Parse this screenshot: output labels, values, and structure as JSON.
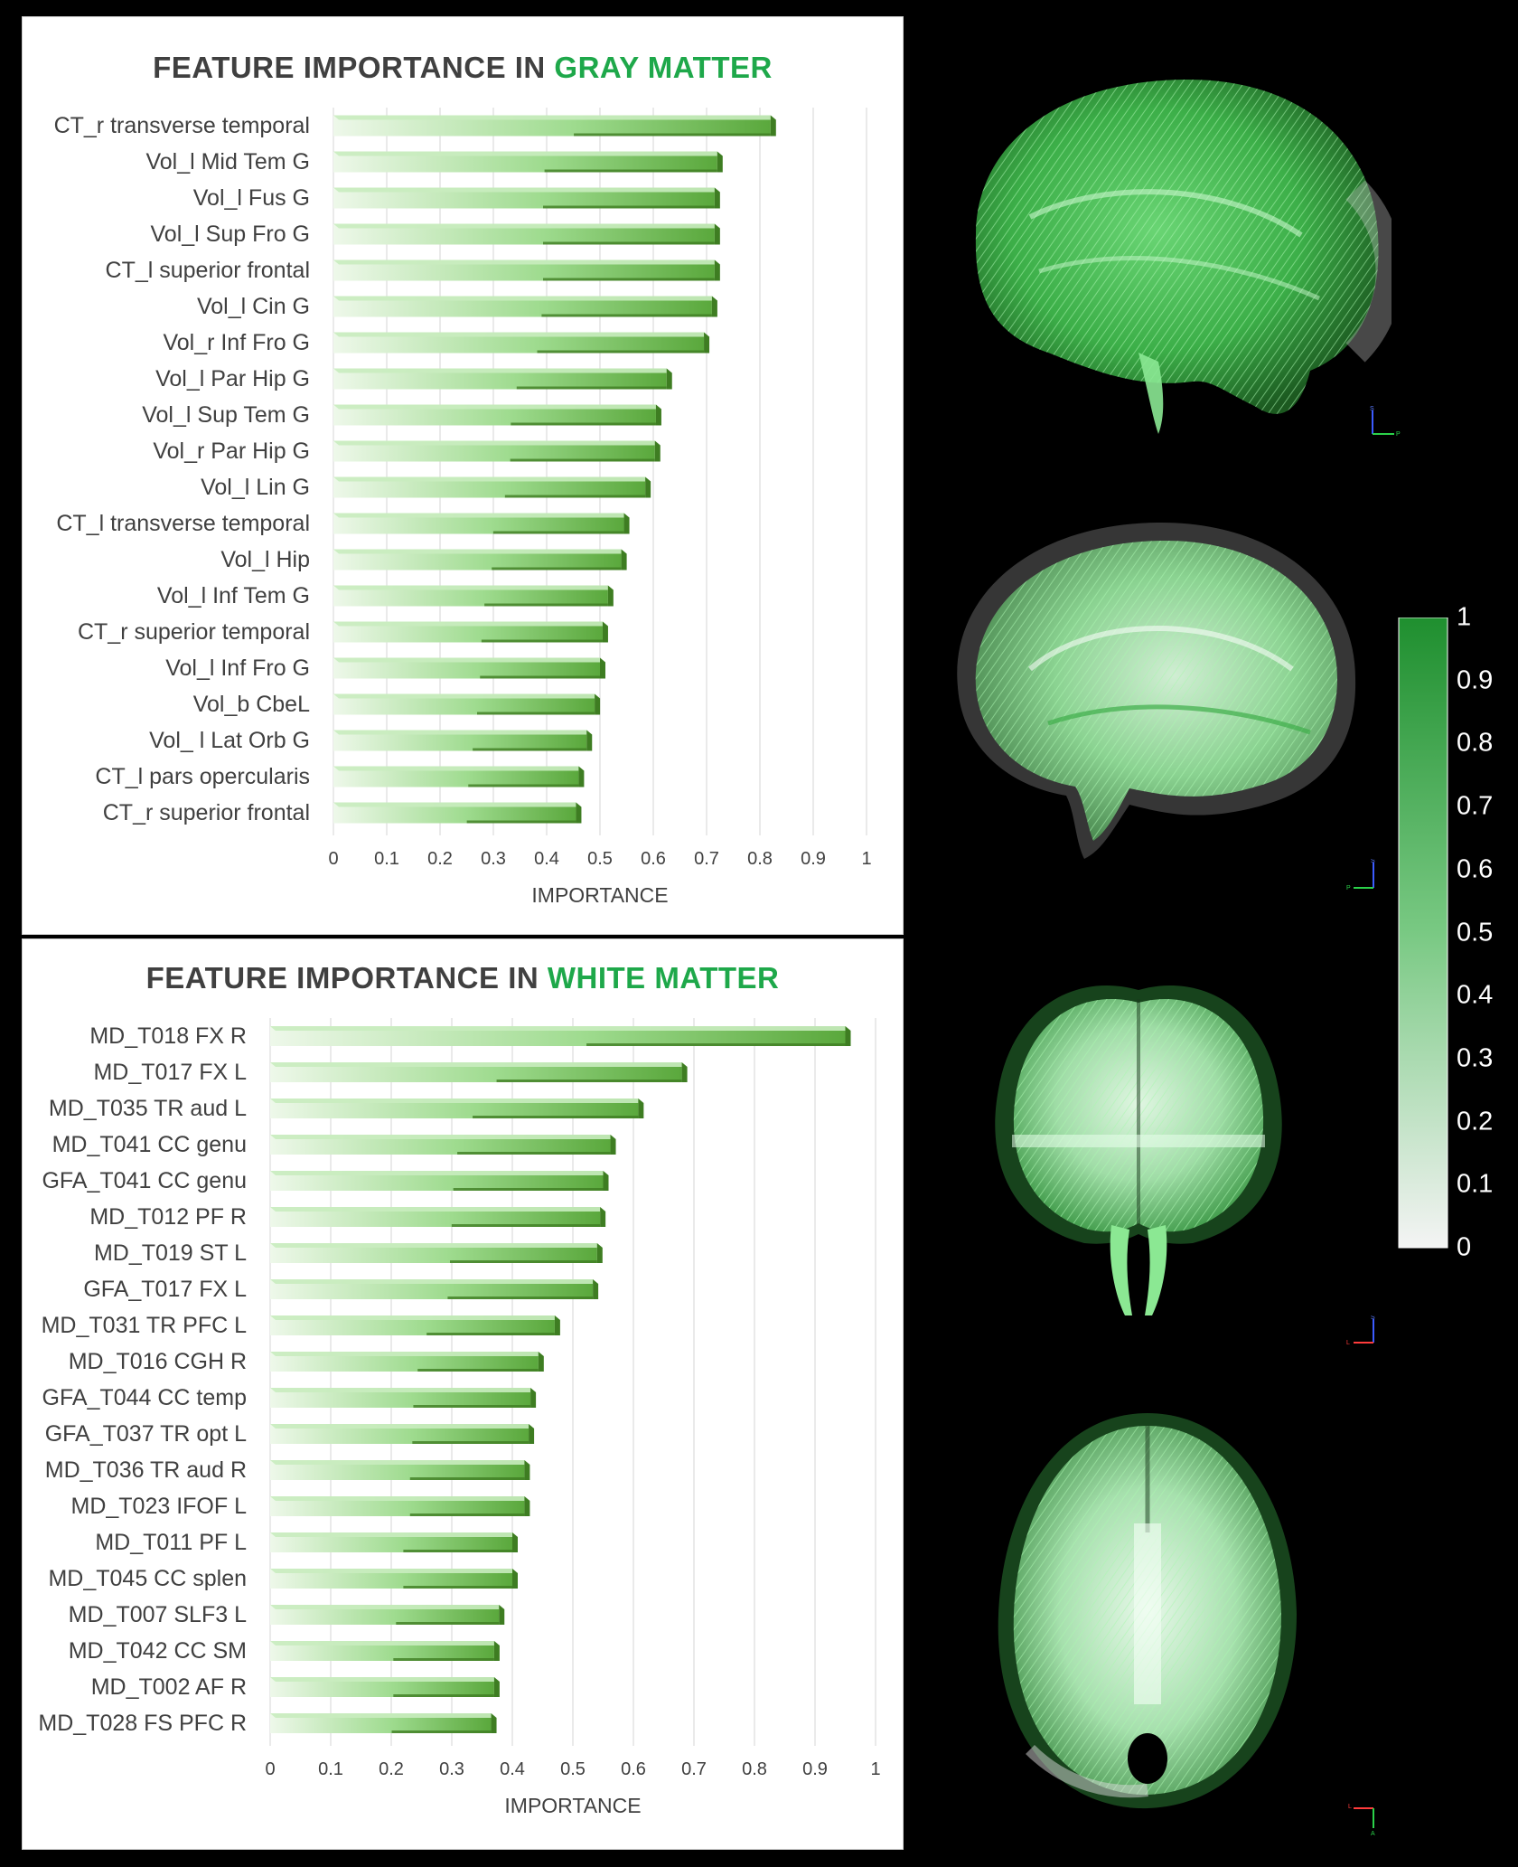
{
  "colors": {
    "accent": "#1ea84a",
    "title_text": "#404040",
    "bar_dark": "#3e7d22",
    "bar_light": "#eef8ea",
    "background": "#000000",
    "colorbar_top": "#1f8f2f",
    "colorbar_bottom": "#f4f4f4"
  },
  "charts": {
    "gray": {
      "title_prefix": "FEATURE IMPORTANCE IN ",
      "title_accent": "GRAY MATTER"
    },
    "white": {
      "title_prefix": "FEATURE IMPORTANCE IN ",
      "title_accent": "WHITE MATTER"
    }
  },
  "chart_data": [
    {
      "type": "bar",
      "orientation": "horizontal",
      "title": "FEATURE IMPORTANCE IN GRAY MATTER",
      "xlabel": "IMPORTANCE",
      "xlim": [
        0,
        1
      ],
      "xticks": [
        "0",
        "0.1",
        "0.2",
        "0.3",
        "0.4",
        "0.5",
        "0.6",
        "0.7",
        "0.8",
        "0.9",
        "1"
      ],
      "grid": true,
      "categories": [
        "CT_r transverse temporal",
        "Vol_l Mid Tem G",
        "Vol_l Fus G",
        "Vol_l Sup Fro G",
        "CT_l superior frontal",
        "Vol_l Cin G",
        "Vol_r Inf Fro G",
        "Vol_l Par Hip G",
        "Vol_l Sup Tem G",
        "Vol_r Par Hip G",
        "Vol_l Lin G",
        "CT_l transverse temporal",
        "Vol_l Hip",
        "Vol_l Inf Tem G",
        "CT_r superior temporal",
        "Vol_l Inf Fro G",
        "Vol_b CbeL",
        "Vol_ l Lat Orb G",
        "CT_l pars opercularis",
        "CT_r superior frontal"
      ],
      "values": [
        0.82,
        0.72,
        0.715,
        0.715,
        0.715,
        0.71,
        0.695,
        0.625,
        0.605,
        0.603,
        0.585,
        0.545,
        0.54,
        0.515,
        0.505,
        0.5,
        0.49,
        0.475,
        0.46,
        0.455
      ]
    },
    {
      "type": "bar",
      "orientation": "horizontal",
      "title": "FEATURE IMPORTANCE IN WHITE MATTER",
      "xlabel": "IMPORTANCE",
      "xlim": [
        0,
        1
      ],
      "xticks": [
        "0",
        "0.1",
        "0.2",
        "0.3",
        "0.4",
        "0.5",
        "0.6",
        "0.7",
        "0.8",
        "0.9",
        "1"
      ],
      "grid": true,
      "categories": [
        "MD_T018 FX R",
        "MD_T017 FX L",
        "MD_T035 TR aud L",
        "MD_T041 CC genu",
        "GFA_T041 CC genu",
        "MD_T012 PF R",
        "MD_T019 ST L",
        "GFA_T017 FX L",
        "MD_T031 TR PFC L",
        "MD_T016 CGH R",
        "GFA_T044 CC temp",
        "GFA_T037 TR opt L",
        "MD_T036 TR aud R",
        "MD_T023 IFOF L",
        "MD_T011 PF L",
        "MD_T045 CC splen",
        "MD_T007 SLF3 L",
        "MD_T042 CC SM",
        "MD_T002 AF R",
        "MD_T028 FS PFC R"
      ],
      "values": [
        0.95,
        0.68,
        0.608,
        0.562,
        0.55,
        0.545,
        0.54,
        0.533,
        0.47,
        0.443,
        0.43,
        0.427,
        0.42,
        0.42,
        0.4,
        0.4,
        0.378,
        0.37,
        0.37,
        0.365
      ]
    },
    {
      "type": "heatmap",
      "subtype": "colorbar",
      "range": [
        0,
        1
      ],
      "ticks": [
        "0",
        "0.1",
        "0.2",
        "0.3",
        "0.4",
        "0.5",
        "0.6",
        "0.7",
        "0.8",
        "0.9",
        "1"
      ]
    }
  ],
  "brain_views": [
    {
      "name": "sagittal-left",
      "axis_letters": [
        "S",
        "P"
      ]
    },
    {
      "name": "sagittal-right",
      "axis_letters": [
        "S",
        "P"
      ]
    },
    {
      "name": "coronal",
      "axis_letters": [
        "S",
        "L"
      ]
    },
    {
      "name": "axial",
      "axis_letters": [
        "L",
        "A"
      ]
    }
  ]
}
